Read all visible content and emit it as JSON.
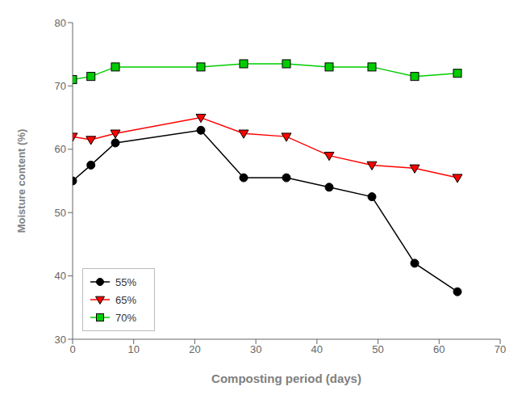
{
  "chart_data": {
    "type": "line",
    "x": [
      0,
      3,
      7,
      21,
      28,
      35,
      42,
      49,
      56,
      63
    ],
    "series": [
      {
        "name": "55%",
        "color": "black",
        "marker": "circle",
        "values": [
          55.0,
          57.5,
          61.0,
          63.0,
          55.5,
          55.5,
          54.0,
          52.5,
          42.0,
          37.5
        ]
      },
      {
        "name": "65%",
        "color": "red",
        "marker": "triangle-down",
        "values": [
          62.0,
          61.5,
          62.5,
          65.0,
          62.5,
          62.0,
          59.0,
          57.5,
          57.0,
          55.5
        ]
      },
      {
        "name": "70%",
        "color": "#00cc00",
        "marker": "square",
        "values": [
          71.0,
          71.5,
          73.0,
          73.0,
          73.5,
          73.5,
          73.0,
          73.0,
          71.5,
          72.0
        ]
      }
    ],
    "xlabel": "Composting period (days)",
    "ylabel": "Moisture content (%)",
    "xlim": [
      0,
      70
    ],
    "ylim": [
      30,
      80
    ],
    "xticks": [
      0,
      10,
      20,
      30,
      40,
      50,
      60,
      70
    ],
    "yticks": [
      30,
      40,
      50,
      60,
      70,
      80
    ],
    "legend": "lower left",
    "grid": false
  }
}
